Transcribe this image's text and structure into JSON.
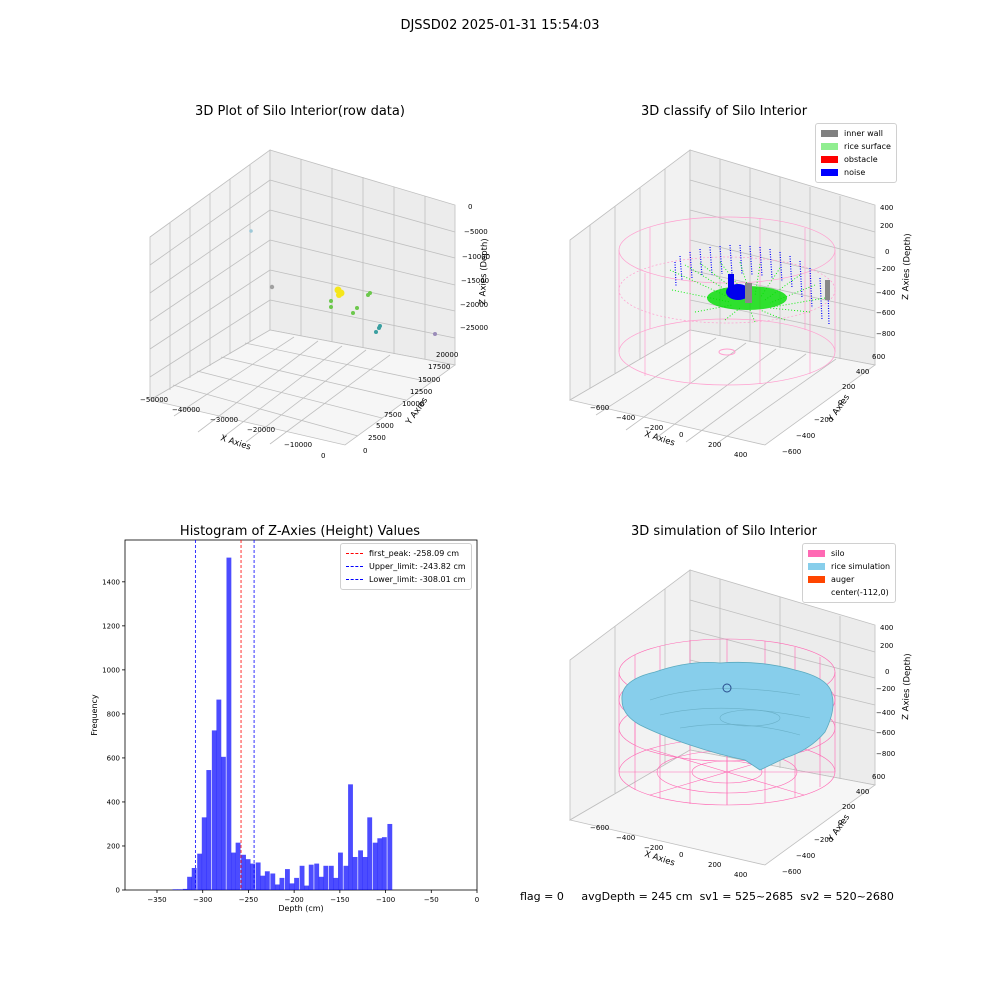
{
  "figure_title": "DJSSD02 2025-01-31 15:54:03",
  "status_line": {
    "flag": "flag = 0",
    "avg_depth": "avgDepth = 245 cm",
    "sv1": "sv1 = 525~2685",
    "sv2": "sv2 = 520~2680"
  },
  "chart_data": [
    {
      "type": "scatter",
      "title": "3D Plot of Silo Interior(row data)",
      "xlabel": "X Axies",
      "ylabel": "Y Axies",
      "zlabel": "Z Axies (Depth)",
      "xticks": [
        "−50000",
        "−40000",
        "−30000",
        "−20000",
        "−10000",
        "0"
      ],
      "yticks": [
        "0",
        "2500",
        "5000",
        "7500",
        "10000",
        "12500",
        "15000",
        "17500",
        "20000"
      ],
      "zticks": [
        "0",
        "−5000",
        "−10000",
        "−15000",
        "−20000",
        "−25000"
      ],
      "xlim": [
        -50000,
        0
      ],
      "ylim": [
        0,
        20000
      ],
      "zlim": [
        -28000,
        0
      ]
    },
    {
      "type": "scatter",
      "title": "3D classify of Silo Interior",
      "xlabel": "X Axies",
      "ylabel": "Y Axies",
      "zlabel": "Z Axies (Depth)",
      "xticks": [
        "−600",
        "−400",
        "−200",
        "0",
        "200",
        "400"
      ],
      "yticks": [
        "−600",
        "−400",
        "−200",
        "0",
        "200",
        "400",
        "600"
      ],
      "zticks": [
        "400",
        "200",
        "0",
        "−200",
        "−400",
        "−600",
        "−800"
      ],
      "legend": [
        {
          "label": "inner wall",
          "color": "#808080"
        },
        {
          "label": "rice surface",
          "color": "#90ee90"
        },
        {
          "label": "obstacle",
          "color": "#ff0000"
        },
        {
          "label": "noise",
          "color": "#0000ff"
        }
      ]
    },
    {
      "type": "bar",
      "title": "Histogram of Z-Axies (Height) Values",
      "xlabel": "Depth (cm)",
      "ylabel": "Frequency",
      "xlim": [
        -385,
        0
      ],
      "ylim": [
        0,
        1590
      ],
      "xticks": [
        -350,
        -300,
        -250,
        -200,
        -150,
        -100,
        -50,
        0
      ],
      "yticks": [
        0,
        200,
        400,
        600,
        800,
        1000,
        1200,
        1400
      ],
      "bar_color": "#0000ff",
      "bin_width": 5.3,
      "bins_start": [
        -333,
        -328,
        -322,
        -317,
        -312,
        -306,
        -301,
        -296,
        -290,
        -285,
        -280,
        -274,
        -269,
        -264,
        -258,
        -253,
        -248,
        -242,
        -237,
        -232,
        -226,
        -221,
        -216,
        -210,
        -205,
        -200,
        -194,
        -189,
        -184,
        -178,
        -173,
        -168,
        -162,
        -157,
        -152,
        -146,
        -141,
        -136,
        -130,
        -125,
        -120,
        -114,
        -109,
        -104,
        -98,
        -93,
        -88,
        -82,
        -77,
        -72,
        -66,
        -61,
        -56,
        -50,
        -45,
        -40,
        -34,
        -29,
        -24
      ],
      "values": [
        3,
        3,
        5,
        60,
        100,
        165,
        330,
        545,
        725,
        865,
        605,
        1510,
        170,
        215,
        160,
        140,
        120,
        125,
        65,
        85,
        75,
        25,
        55,
        95,
        30,
        55,
        110,
        20,
        115,
        120,
        60,
        110,
        110,
        55,
        170,
        110,
        480,
        150,
        180,
        150,
        330,
        215,
        235,
        240,
        300,
        0,
        0,
        0,
        0,
        0,
        0,
        0,
        0,
        0,
        0,
        0,
        0,
        0,
        0
      ],
      "vlines": [
        {
          "label": "first_peak: -258.09 cm",
          "x": -258.09,
          "color": "#ff0000"
        },
        {
          "label": "Upper_limit: -243.82 cm",
          "x": -243.82,
          "color": "#0000ff"
        },
        {
          "label": "Lower_limit: -308.01 cm",
          "x": -308.01,
          "color": "#0000ff"
        }
      ]
    },
    {
      "type": "surface",
      "title": "3D simulation of Silo Interior",
      "xlabel": "X Axies",
      "ylabel": "Y Axies",
      "zlabel": "Z Axies (Depth)",
      "xticks": [
        "−600",
        "−400",
        "−200",
        "0",
        "200",
        "400"
      ],
      "yticks": [
        "−600",
        "−400",
        "−200",
        "0",
        "200",
        "400",
        "600"
      ],
      "zticks": [
        "400",
        "200",
        "0",
        "−200",
        "−400",
        "−600",
        "−800"
      ],
      "legend": [
        {
          "label": "silo",
          "color": "#ff69b4"
        },
        {
          "label": "rice simulation",
          "color": "#87ceeb"
        },
        {
          "label": "auger",
          "color": "#ff4500"
        },
        {
          "label": "center(-112,0)",
          "color": ""
        }
      ]
    }
  ]
}
